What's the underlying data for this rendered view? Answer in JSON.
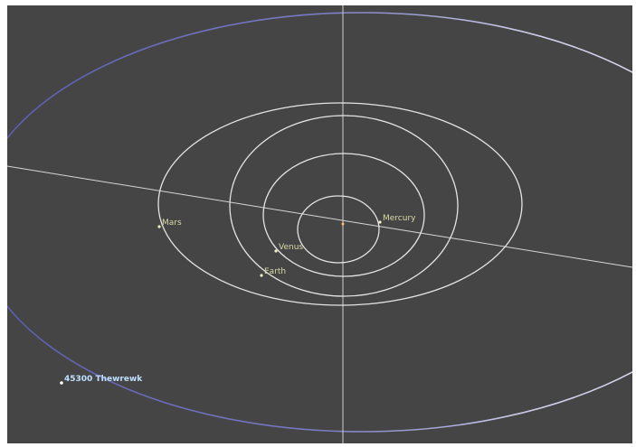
{
  "colors": {
    "background": "#454545",
    "orbit": "#e6e6e6",
    "axis": "#d8d8d8",
    "planet_label": "#d9d9a8",
    "asteroid_label": "#bfe0ff",
    "asteroid_orbit_dark": "#6b6bb8",
    "asteroid_orbit_light": "#d6d6ea"
  },
  "bodies": [
    {
      "id": "mercury",
      "label": "Mercury",
      "type": "planet"
    },
    {
      "id": "venus",
      "label": "Venus",
      "type": "planet"
    },
    {
      "id": "earth",
      "label": "Earth",
      "type": "planet"
    },
    {
      "id": "mars",
      "label": "Mars",
      "type": "planet"
    },
    {
      "id": "asteroid",
      "label": "45300 Thewrewk",
      "type": "asteroid"
    }
  ]
}
